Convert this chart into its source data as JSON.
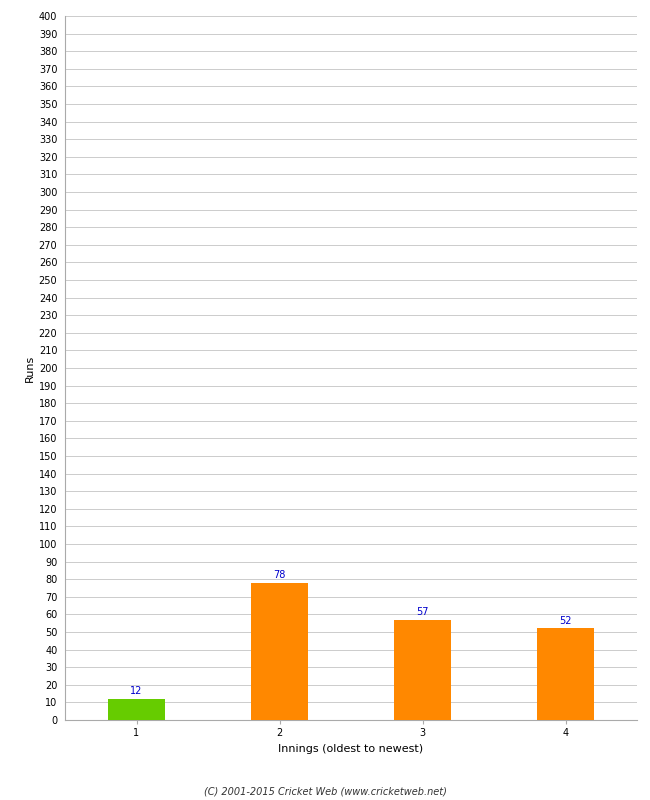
{
  "categories": [
    1,
    2,
    3,
    4
  ],
  "values": [
    12,
    78,
    57,
    52
  ],
  "bar_colors": [
    "#66cc00",
    "#ff8800",
    "#ff8800",
    "#ff8800"
  ],
  "ylabel": "Runs",
  "xlabel": "Innings (oldest to newest)",
  "ylim": [
    0,
    400
  ],
  "ytick_step": 10,
  "label_color": "#0000cc",
  "label_fontsize": 7,
  "axis_label_fontsize": 8,
  "tick_fontsize": 7,
  "footer": "(C) 2001-2015 Cricket Web (www.cricketweb.net)",
  "background_color": "#ffffff",
  "grid_color": "#cccccc",
  "bar_width": 0.4
}
